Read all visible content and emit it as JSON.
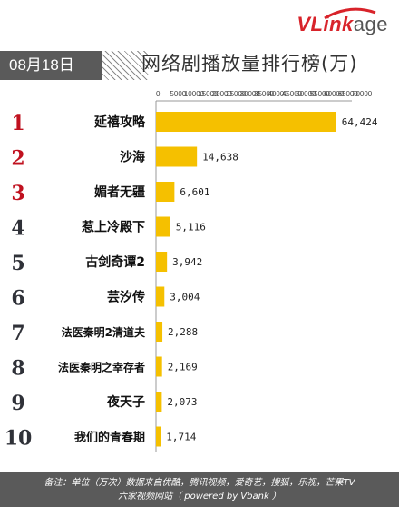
{
  "header": {
    "date": "08月18日",
    "title": "网络剧播放量排行榜(万)",
    "logo": "VLinkage"
  },
  "colors": {
    "bar": "#f5c000",
    "rank_red": "#c0111f",
    "rank_dark": "#2f3138",
    "footer_bg": "#5a5a5a"
  },
  "chart_data": {
    "type": "bar",
    "orientation": "horizontal",
    "title": "网络剧播放量排行榜(万)",
    "categories": [
      "延禧攻略",
      "沙海",
      "媚者无疆",
      "惹上冷殿下",
      "古剑奇谭2",
      "芸汐传",
      "法医秦明2清道夫",
      "法医秦明之幸存者",
      "夜天子",
      "我们的青春期"
    ],
    "ranks": [
      "1",
      "2",
      "3",
      "4",
      "5",
      "6",
      "7",
      "8",
      "9",
      "10"
    ],
    "values": [
      64424,
      14638,
      6601,
      5116,
      3942,
      3004,
      2288,
      2169,
      2073,
      1714
    ],
    "value_labels": [
      "64,424",
      "14,638",
      "6,601",
      "5,116",
      "3,942",
      "3,004",
      "2,288",
      "2,169",
      "2,073",
      "1,714"
    ],
    "xlim": [
      0,
      70000
    ],
    "xticks": [
      "0",
      "5000",
      "10000",
      "15000",
      "20000",
      "25000",
      "30000",
      "35000",
      "40000",
      "45000",
      "50000",
      "55000",
      "60000",
      "65000",
      "70000"
    ]
  },
  "footer": {
    "line1": "备注：单位（万次）数据来自优酷，腾讯视频，爱奇艺，搜狐，乐视，芒果TV",
    "line2": "六家视频网站（ powered by Vbank ）"
  }
}
